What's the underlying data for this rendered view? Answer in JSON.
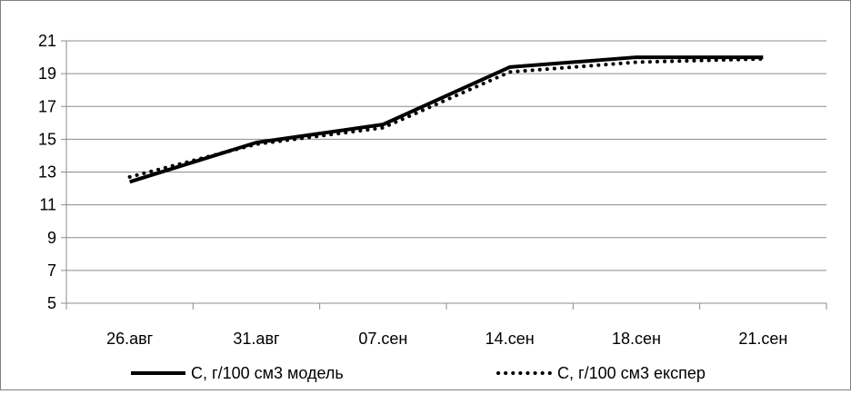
{
  "chart_data": {
    "type": "line",
    "categories": [
      "26.авг",
      "31.авг",
      "07.сен",
      "14.сен",
      "18.сен",
      "21.сен"
    ],
    "series": [
      {
        "name": "С, г/100 см3 модель",
        "values": [
          12.4,
          14.8,
          15.9,
          19.4,
          20.0,
          20.0
        ],
        "style": "solid",
        "color": "#000000"
      },
      {
        "name": "С, г/100 см3 експер",
        "values": [
          12.7,
          14.7,
          15.7,
          19.1,
          19.7,
          19.9
        ],
        "style": "dotted",
        "color": "#000000"
      }
    ],
    "ylim": [
      5,
      21
    ],
    "yticks": [
      "5",
      "7",
      "9",
      "11",
      "13",
      "15",
      "17",
      "19",
      "21"
    ],
    "grid": true,
    "legend_position": "bottom"
  }
}
